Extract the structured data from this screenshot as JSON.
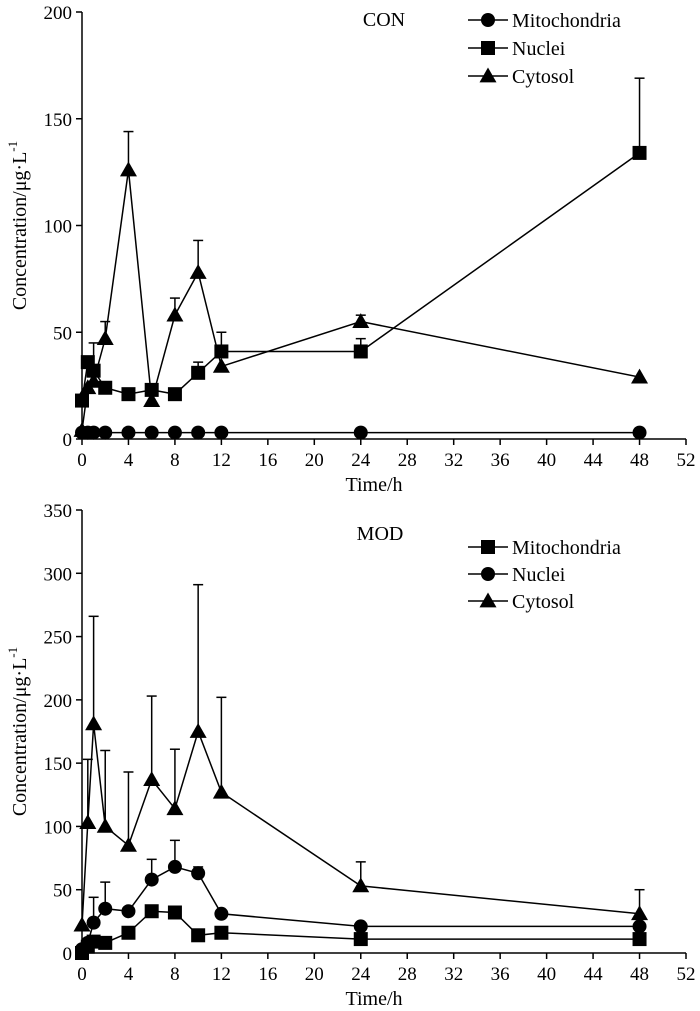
{
  "chart_data": [
    {
      "type": "line",
      "panel_label": "CON",
      "xlabel": "Time/h",
      "ylabel": "Concentration/μg·L",
      "ylabel_exponent": "-1",
      "xlim": [
        0,
        52
      ],
      "ylim": [
        0,
        200
      ],
      "xticks": [
        0,
        4,
        8,
        12,
        16,
        20,
        24,
        28,
        32,
        36,
        40,
        44,
        48,
        52
      ],
      "yticks": [
        0,
        50,
        100,
        150,
        200
      ],
      "legend_position": "top-right",
      "series": [
        {
          "name": "Mitochondria",
          "marker": "circle",
          "x": [
            0,
            0.5,
            1,
            2,
            4,
            6,
            8,
            10,
            12,
            24,
            48
          ],
          "values": [
            3,
            3,
            3,
            3,
            3,
            3,
            3,
            3,
            3,
            3,
            3
          ],
          "error": [
            0,
            0,
            0,
            0,
            0,
            0,
            0,
            0,
            0,
            0,
            0
          ]
        },
        {
          "name": "Nuclei",
          "marker": "square",
          "x": [
            0,
            0.5,
            1,
            2,
            4,
            6,
            8,
            10,
            12,
            24,
            48
          ],
          "values": [
            18,
            36,
            32,
            24,
            21,
            23,
            21,
            31,
            41,
            41,
            134
          ],
          "error": [
            0,
            0,
            13,
            0,
            0,
            0,
            0,
            5,
            9,
            6,
            35
          ]
        },
        {
          "name": "Cytosol",
          "marker": "triangle",
          "x": [
            0,
            0.5,
            1,
            2,
            4,
            6,
            8,
            10,
            12,
            24,
            48
          ],
          "values": [
            4,
            24,
            27,
            47,
            126,
            18,
            58,
            78,
            34,
            55,
            29
          ],
          "error": [
            0,
            0,
            0,
            8,
            18,
            0,
            8,
            15,
            0,
            3,
            0
          ]
        }
      ]
    },
    {
      "type": "line",
      "panel_label": "MOD",
      "xlabel": "Time/h",
      "ylabel": "Concentration/μg·L",
      "ylabel_exponent": "-1",
      "xlim": [
        0,
        52
      ],
      "ylim": [
        0,
        350
      ],
      "xticks": [
        0,
        4,
        8,
        12,
        16,
        20,
        24,
        28,
        32,
        36,
        40,
        44,
        48,
        52
      ],
      "yticks": [
        0,
        50,
        100,
        150,
        200,
        250,
        300,
        350
      ],
      "legend_position": "top-right",
      "series": [
        {
          "name": "Mitochondria",
          "marker": "square",
          "x": [
            0,
            0.5,
            1,
            2,
            4,
            6,
            8,
            10,
            12,
            24,
            48
          ],
          "values": [
            0,
            5,
            9,
            8,
            16,
            33,
            32,
            14,
            16,
            11,
            11
          ],
          "error": [
            0,
            0,
            0,
            0,
            0,
            0,
            0,
            0,
            0,
            0,
            0
          ]
        },
        {
          "name": "Nuclei",
          "marker": "circle",
          "x": [
            0,
            0.5,
            1,
            2,
            4,
            6,
            8,
            10,
            12,
            24,
            48
          ],
          "values": [
            3,
            8,
            24,
            35,
            33,
            58,
            68,
            63,
            31,
            21,
            21
          ],
          "error": [
            0,
            0,
            20,
            21,
            0,
            16,
            21,
            5,
            0,
            0,
            0
          ]
        },
        {
          "name": "Cytosol",
          "marker": "triangle",
          "x": [
            0,
            0.5,
            1,
            2,
            4,
            6,
            8,
            10,
            12,
            24,
            48
          ],
          "values": [
            22,
            103,
            181,
            100,
            85,
            137,
            114,
            175,
            127,
            53,
            31
          ],
          "error": [
            0,
            50,
            85,
            60,
            58,
            66,
            47,
            116,
            75,
            19,
            19
          ]
        }
      ]
    }
  ]
}
